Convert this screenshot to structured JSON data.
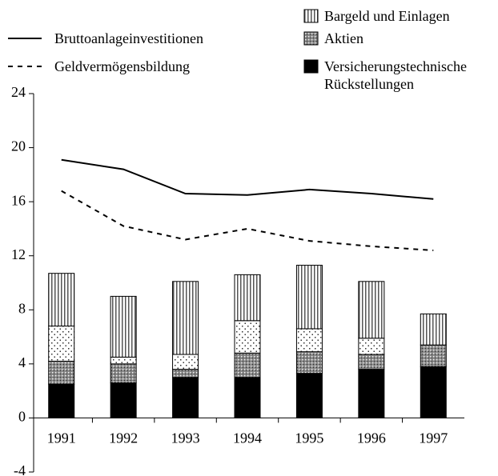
{
  "chart_data": {
    "type": "bar",
    "categories": [
      "1991",
      "1992",
      "1993",
      "1994",
      "1995",
      "1996",
      "1997"
    ],
    "ylim": [
      -4,
      24
    ],
    "yticks": [
      -4,
      0,
      4,
      8,
      12,
      16,
      20,
      24
    ],
    "series": [
      {
        "name": "Versicherungstechnische Rückstellungen",
        "type": "bar",
        "color": "#000000",
        "pattern": "solid",
        "values": [
          2.5,
          2.6,
          3.0,
          3.0,
          3.3,
          3.6,
          3.8
        ]
      },
      {
        "name": "Aktien",
        "type": "bar",
        "color": "#777777",
        "pattern": "dots",
        "values": [
          1.7,
          1.4,
          0.6,
          1.8,
          1.6,
          1.1,
          1.6
        ]
      },
      {
        "type": "bar",
        "color": "#ffffff",
        "pattern": "sparse-dots",
        "values": [
          2.6,
          0.5,
          1.1,
          2.4,
          1.7,
          1.2,
          0
        ]
      },
      {
        "name": "Bargeld und Einlagen",
        "type": "bar",
        "color": "#ffffff",
        "pattern": "vertical-stripes",
        "values": [
          3.9,
          4.5,
          5.4,
          3.4,
          4.7,
          4.2,
          2.3
        ]
      },
      {
        "name": "Bruttoanlageinvestitionen",
        "type": "line",
        "color": "#000000",
        "dash": false,
        "values": [
          19.1,
          18.4,
          16.6,
          16.5,
          16.9,
          16.6,
          16.2
        ]
      },
      {
        "name": "Geldvermögensbildung",
        "type": "line",
        "color": "#000000",
        "dash": true,
        "values": [
          16.8,
          14.2,
          13.2,
          14.0,
          13.1,
          12.7,
          12.4
        ]
      }
    ]
  }
}
